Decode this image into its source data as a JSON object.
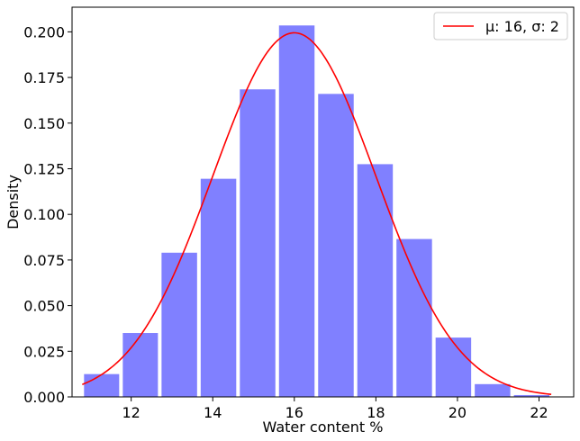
{
  "chart_data": {
    "type": "bar",
    "subtype": "histogram",
    "xlabel": "Water content %",
    "ylabel": "Density",
    "xlim": [
      10.55,
      22.85
    ],
    "ylim": [
      0.0,
      0.2135
    ],
    "xticks": [
      12,
      14,
      16,
      18,
      20,
      22
    ],
    "xtick_labels": [
      "12",
      "14",
      "16",
      "18",
      "20",
      "22"
    ],
    "yticks": [
      0.0,
      0.025,
      0.05,
      0.075,
      0.1,
      0.125,
      0.15,
      0.175,
      0.2
    ],
    "ytick_labels": [
      "0.000",
      "0.025",
      "0.050",
      "0.075",
      "0.100",
      "0.125",
      "0.150",
      "0.175",
      "0.200"
    ],
    "bars": [
      {
        "x_start": 10.8,
        "x_end": 11.75,
        "value": 0.0125
      },
      {
        "x_start": 11.75,
        "x_end": 12.7,
        "value": 0.035
      },
      {
        "x_start": 12.7,
        "x_end": 13.66,
        "value": 0.079
      },
      {
        "x_start": 13.66,
        "x_end": 14.62,
        "value": 0.1195
      },
      {
        "x_start": 14.62,
        "x_end": 15.58,
        "value": 0.1685
      },
      {
        "x_start": 15.58,
        "x_end": 16.54,
        "value": 0.2035
      },
      {
        "x_start": 16.54,
        "x_end": 17.5,
        "value": 0.166
      },
      {
        "x_start": 17.5,
        "x_end": 18.46,
        "value": 0.1275
      },
      {
        "x_start": 18.46,
        "x_end": 19.42,
        "value": 0.0865
      },
      {
        "x_start": 19.42,
        "x_end": 20.38,
        "value": 0.0325
      },
      {
        "x_start": 20.38,
        "x_end": 21.34,
        "value": 0.007
      },
      {
        "x_start": 21.34,
        "x_end": 22.3,
        "value": 0.001
      }
    ],
    "bar_color": "#8080ff",
    "series": [
      {
        "name": "μ: 16, σ: 2",
        "type": "line",
        "distribution": "normal",
        "mu": 16,
        "sigma": 2,
        "x_range": [
          10.8,
          22.3
        ],
        "color": "#ff0000"
      }
    ],
    "grid": false,
    "legend_position": "top-right"
  }
}
